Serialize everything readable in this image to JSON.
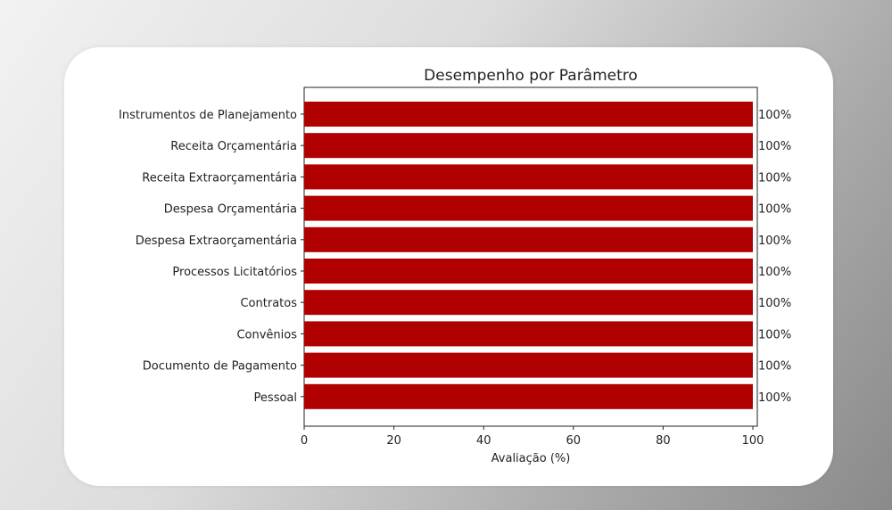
{
  "chart_data": {
    "type": "bar",
    "orientation": "horizontal",
    "title": "Desempenho por Parâmetro",
    "xlabel": "Avaliação (%)",
    "ylabel": "",
    "xlim": [
      0,
      100
    ],
    "xticks": [
      "0",
      "20",
      "40",
      "60",
      "80",
      "100"
    ],
    "categories": [
      "Instrumentos de Planejamento",
      "Receita Orçamentária",
      "Receita Extraorçamentária",
      "Despesa Orçamentária",
      "Despesa Extraorçamentária",
      "Processos Licitatórios",
      "Contratos",
      "Convênios",
      "Documento de Pagamento",
      "Pessoal"
    ],
    "values": [
      100,
      100,
      100,
      100,
      100,
      100,
      100,
      100,
      100,
      100
    ],
    "data_labels": [
      "100%",
      "100%",
      "100%",
      "100%",
      "100%",
      "100%",
      "100%",
      "100%",
      "100%",
      "100%"
    ],
    "bar_color": "#b00000",
    "grid": false,
    "legend": "none"
  }
}
